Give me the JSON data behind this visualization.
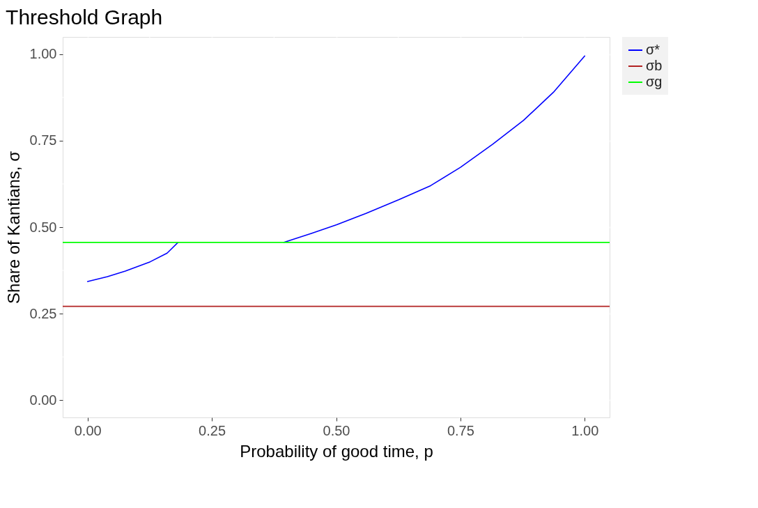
{
  "chart_data": {
    "type": "line",
    "title": "Threshold Graph",
    "xlabel": "Probability of good time, p",
    "ylabel": "Share of Kantians,  σ",
    "xlim": [
      -0.05,
      1.05
    ],
    "ylim": [
      -0.05,
      1.05
    ],
    "xticks": [
      {
        "value": 0,
        "label": "0.00"
      },
      {
        "value": 0.25,
        "label": "0.25"
      },
      {
        "value": 0.5,
        "label": "0.50"
      },
      {
        "value": 0.75,
        "label": "0.75"
      },
      {
        "value": 1,
        "label": "1.00"
      }
    ],
    "yticks": [
      {
        "value": 0,
        "label": "0.00"
      },
      {
        "value": 0.25,
        "label": "0.25"
      },
      {
        "value": 0.5,
        "label": "0.50"
      },
      {
        "value": 0.75,
        "label": "0.75"
      },
      {
        "value": 1,
        "label": "1.00"
      }
    ],
    "grid": true,
    "legend": "right",
    "series": [
      {
        "name": "σ*",
        "color": "#0000ff",
        "x": [
          0,
          0.04,
          0.076,
          0.126,
          0.16,
          0.182,
          0.3,
          0.395,
          0.45,
          0.501,
          0.56,
          0.627,
          0.69,
          0.75,
          0.815,
          0.877,
          0.937,
          1.0
        ],
        "values": [
          0.343,
          0.357,
          0.373,
          0.4,
          0.425,
          0.456,
          null,
          0.456,
          0.482,
          0.507,
          0.54,
          0.58,
          0.62,
          0.673,
          0.74,
          0.809,
          0.89,
          0.995
        ]
      },
      {
        "name": "σb",
        "color": "#b22222",
        "x": [
          -0.05,
          1.05
        ],
        "values": [
          0.271,
          0.271
        ]
      },
      {
        "name": "σg",
        "color": "#00ff00",
        "x": [
          -0.05,
          1.05
        ],
        "values": [
          0.456,
          0.456
        ]
      }
    ]
  }
}
